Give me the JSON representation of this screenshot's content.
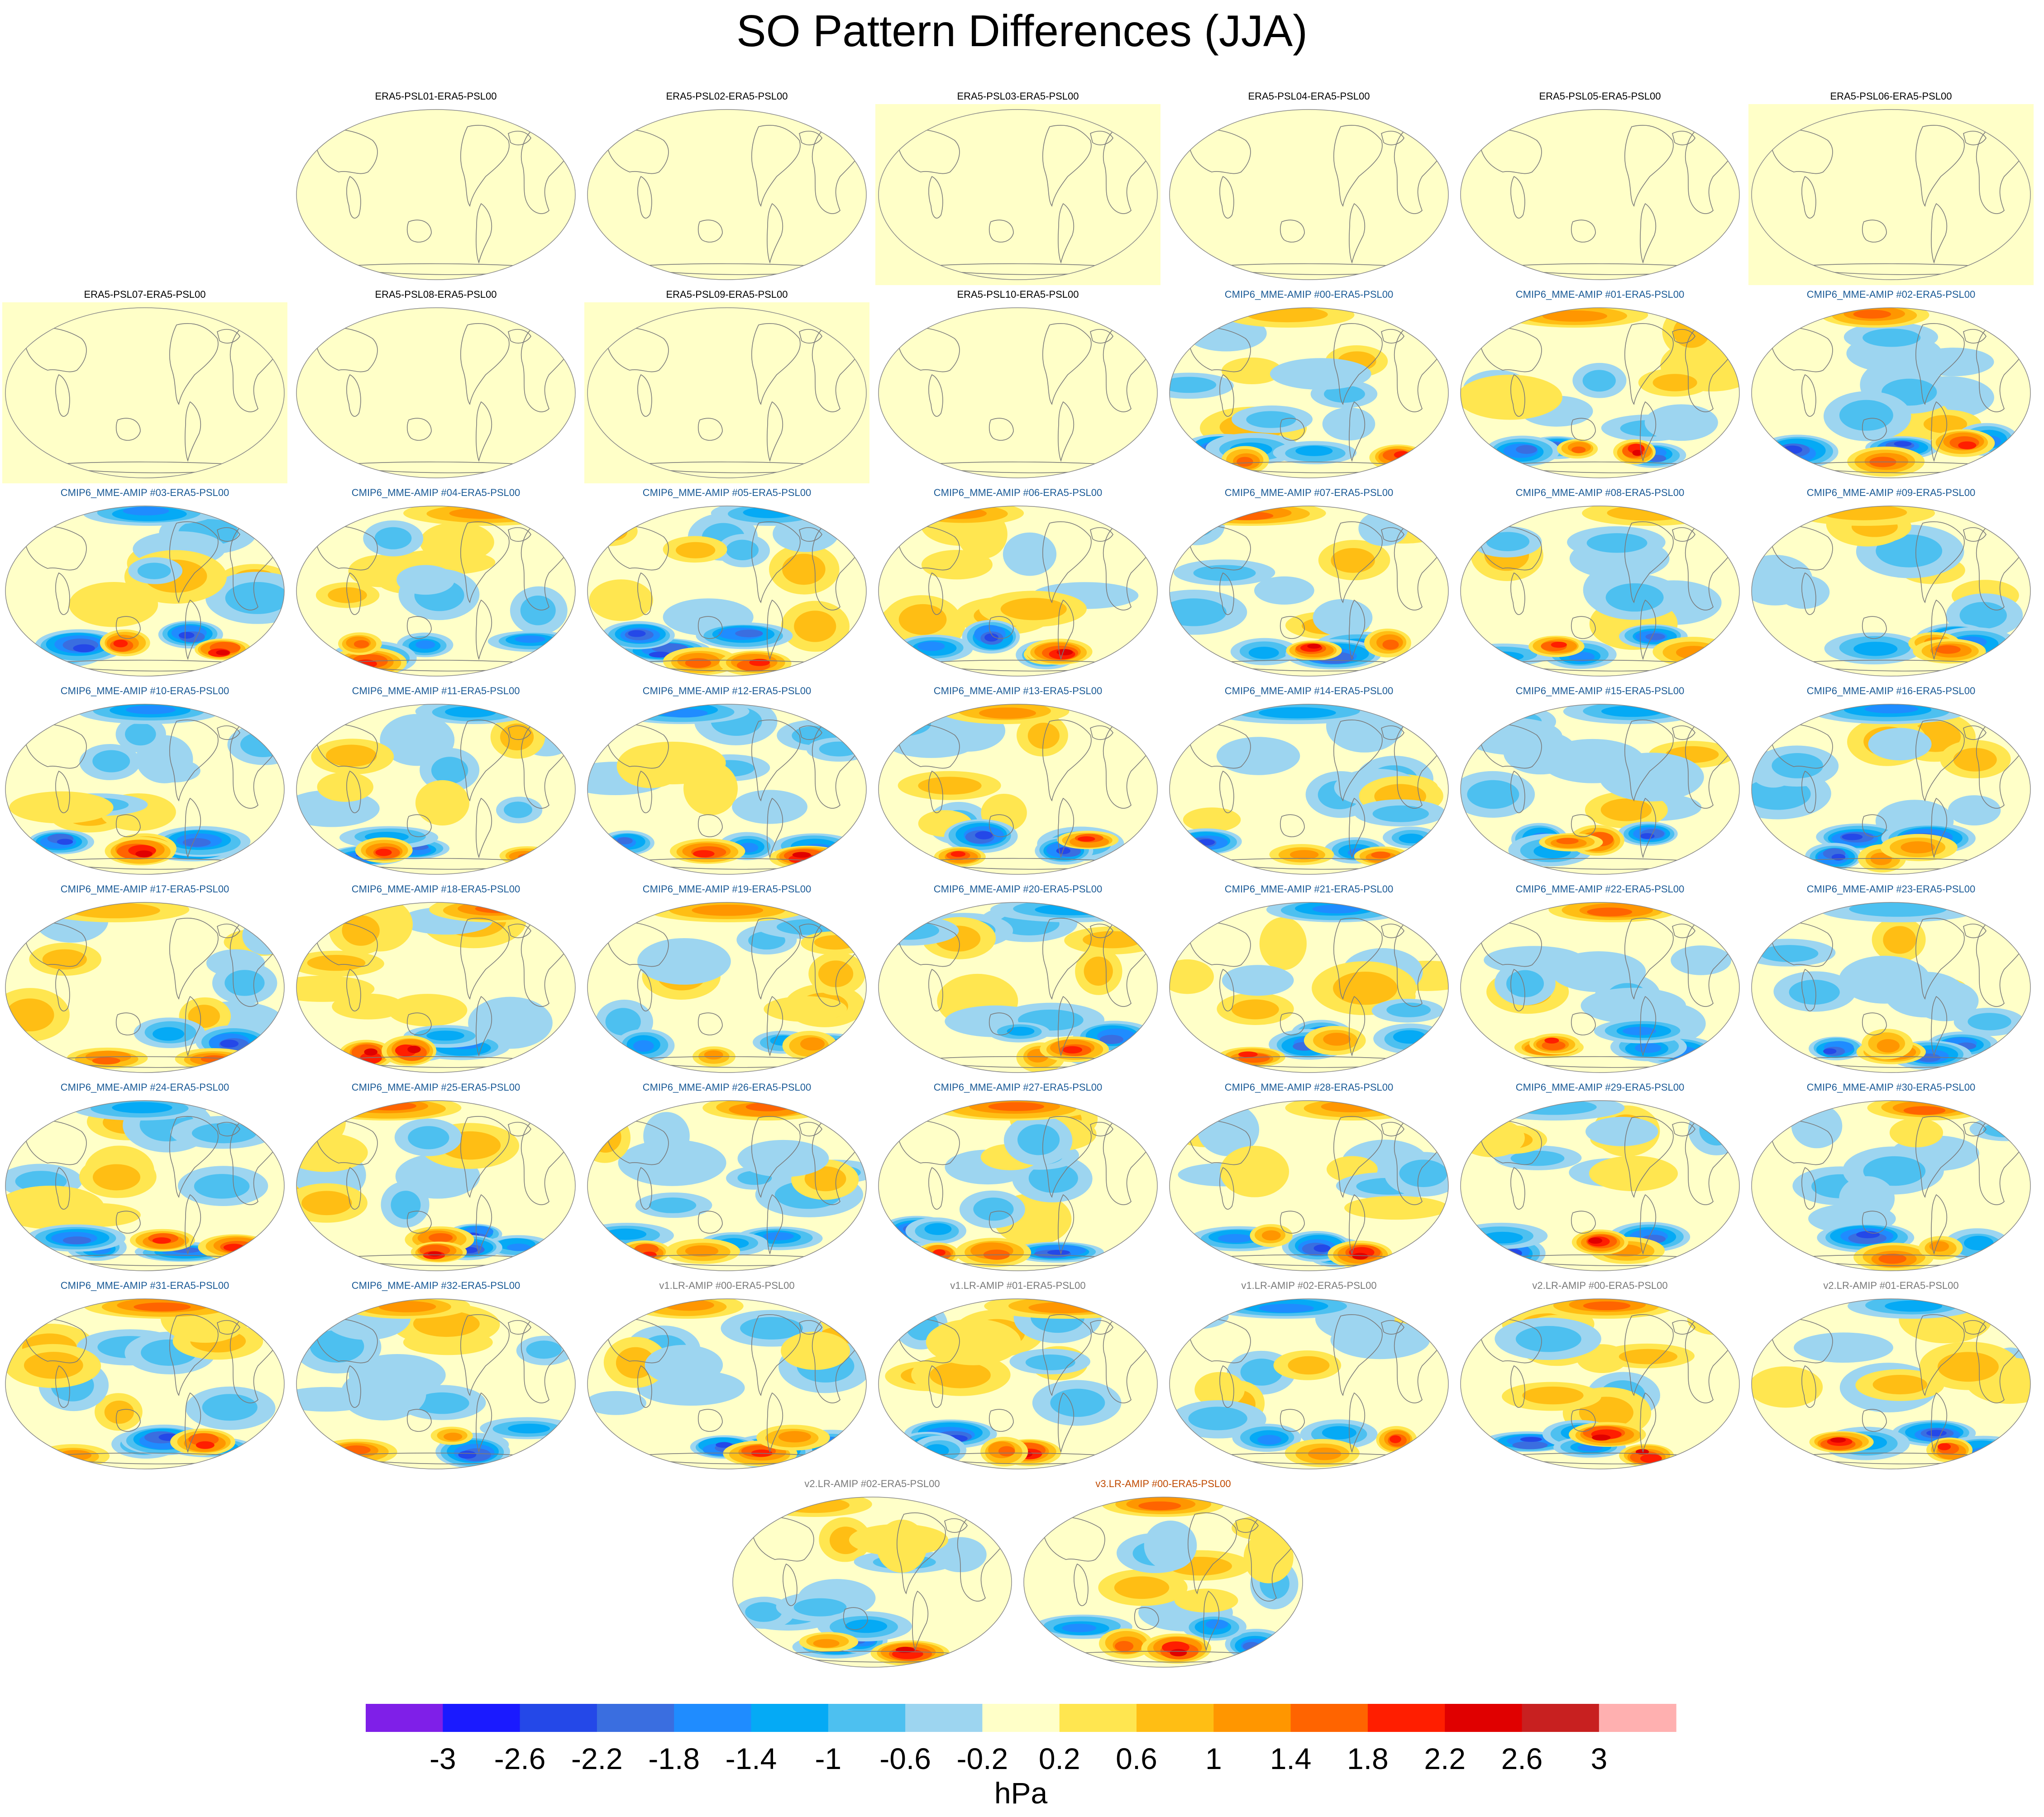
{
  "title": "SO Pattern Differences (JJA)",
  "colors": {
    "era5_title": "#000000",
    "cmip6_title": "#1a5a96",
    "v1_title": "#7a7a7a",
    "v2_title": "#7a7a7a",
    "v3_title": "#c04a00",
    "coast": "#7a7a7a",
    "neutral_fill": "#ffffc8"
  },
  "panels": [
    {
      "label": "ERA5-PSL01-ERA5-PSL00",
      "group": "era5"
    },
    {
      "label": "ERA5-PSL02-ERA5-PSL00",
      "group": "era5"
    },
    {
      "label": "ERA5-PSL03-ERA5-PSL00",
      "group": "era5",
      "framed": true
    },
    {
      "label": "ERA5-PSL04-ERA5-PSL00",
      "group": "era5"
    },
    {
      "label": "ERA5-PSL05-ERA5-PSL00",
      "group": "era5"
    },
    {
      "label": "ERA5-PSL06-ERA5-PSL00",
      "group": "era5",
      "framed": true
    },
    {
      "label": "ERA5-PSL07-ERA5-PSL00",
      "group": "era5",
      "framed": true
    },
    {
      "label": "ERA5-PSL08-ERA5-PSL00",
      "group": "era5"
    },
    {
      "label": "ERA5-PSL09-ERA5-PSL00",
      "group": "era5",
      "framed": true
    },
    {
      "label": "ERA5-PSL10-ERA5-PSL00",
      "group": "era5"
    },
    {
      "label": "CMIP6_MME-AMIP  #00-ERA5-PSL00",
      "group": "cmip6"
    },
    {
      "label": "CMIP6_MME-AMIP  #01-ERA5-PSL00",
      "group": "cmip6"
    },
    {
      "label": "CMIP6_MME-AMIP  #02-ERA5-PSL00",
      "group": "cmip6"
    },
    {
      "label": "CMIP6_MME-AMIP  #03-ERA5-PSL00",
      "group": "cmip6"
    },
    {
      "label": "CMIP6_MME-AMIP  #04-ERA5-PSL00",
      "group": "cmip6"
    },
    {
      "label": "CMIP6_MME-AMIP  #05-ERA5-PSL00",
      "group": "cmip6"
    },
    {
      "label": "CMIP6_MME-AMIP  #06-ERA5-PSL00",
      "group": "cmip6"
    },
    {
      "label": "CMIP6_MME-AMIP  #07-ERA5-PSL00",
      "group": "cmip6"
    },
    {
      "label": "CMIP6_MME-AMIP  #08-ERA5-PSL00",
      "group": "cmip6"
    },
    {
      "label": "CMIP6_MME-AMIP  #09-ERA5-PSL00",
      "group": "cmip6"
    },
    {
      "label": "CMIP6_MME-AMIP  #10-ERA5-PSL00",
      "group": "cmip6"
    },
    {
      "label": "CMIP6_MME-AMIP  #11-ERA5-PSL00",
      "group": "cmip6"
    },
    {
      "label": "CMIP6_MME-AMIP  #12-ERA5-PSL00",
      "group": "cmip6"
    },
    {
      "label": "CMIP6_MME-AMIP  #13-ERA5-PSL00",
      "group": "cmip6"
    },
    {
      "label": "CMIP6_MME-AMIP  #14-ERA5-PSL00",
      "group": "cmip6"
    },
    {
      "label": "CMIP6_MME-AMIP  #15-ERA5-PSL00",
      "group": "cmip6"
    },
    {
      "label": "CMIP6_MME-AMIP  #16-ERA5-PSL00",
      "group": "cmip6"
    },
    {
      "label": "CMIP6_MME-AMIP  #17-ERA5-PSL00",
      "group": "cmip6"
    },
    {
      "label": "CMIP6_MME-AMIP  #18-ERA5-PSL00",
      "group": "cmip6"
    },
    {
      "label": "CMIP6_MME-AMIP  #19-ERA5-PSL00",
      "group": "cmip6"
    },
    {
      "label": "CMIP6_MME-AMIP  #20-ERA5-PSL00",
      "group": "cmip6"
    },
    {
      "label": "CMIP6_MME-AMIP  #21-ERA5-PSL00",
      "group": "cmip6"
    },
    {
      "label": "CMIP6_MME-AMIP  #22-ERA5-PSL00",
      "group": "cmip6"
    },
    {
      "label": "CMIP6_MME-AMIP  #23-ERA5-PSL00",
      "group": "cmip6"
    },
    {
      "label": "CMIP6_MME-AMIP  #24-ERA5-PSL00",
      "group": "cmip6"
    },
    {
      "label": "CMIP6_MME-AMIP  #25-ERA5-PSL00",
      "group": "cmip6"
    },
    {
      "label": "CMIP6_MME-AMIP  #26-ERA5-PSL00",
      "group": "cmip6"
    },
    {
      "label": "CMIP6_MME-AMIP  #27-ERA5-PSL00",
      "group": "cmip6"
    },
    {
      "label": "CMIP6_MME-AMIP  #28-ERA5-PSL00",
      "group": "cmip6"
    },
    {
      "label": "CMIP6_MME-AMIP  #29-ERA5-PSL00",
      "group": "cmip6"
    },
    {
      "label": "CMIP6_MME-AMIP  #30-ERA5-PSL00",
      "group": "cmip6"
    },
    {
      "label": "CMIP6_MME-AMIP  #31-ERA5-PSL00",
      "group": "cmip6"
    },
    {
      "label": "CMIP6_MME-AMIP  #32-ERA5-PSL00",
      "group": "cmip6"
    },
    {
      "label": "v1.LR-AMIP  #00-ERA5-PSL00",
      "group": "v1"
    },
    {
      "label": "v1.LR-AMIP  #01-ERA5-PSL00",
      "group": "v1"
    },
    {
      "label": "v1.LR-AMIP  #02-ERA5-PSL00",
      "group": "v1"
    },
    {
      "label": "v2.LR-AMIP  #00-ERA5-PSL00",
      "group": "v2"
    },
    {
      "label": "v2.LR-AMIP  #01-ERA5-PSL00",
      "group": "v2"
    },
    {
      "label": "v2.LR-AMIP  #02-ERA5-PSL00",
      "group": "v2"
    },
    {
      "label": "v3.LR-AMIP  #00-ERA5-PSL00",
      "group": "v3"
    }
  ],
  "chart_data": {
    "type": "heatmap",
    "title": "SO Pattern Differences (JJA)",
    "projection": "global ellipse (Robinson-like), Pacific-centred",
    "field": "sea level pressure pattern difference vs ERA5-PSL00",
    "units_label": "hPa",
    "colorbar": {
      "levels": [
        "-3",
        "-2.6",
        "-2.2",
        "-1.8",
        "-1.4",
        "-1",
        "-0.6",
        "-0.2",
        "0.2",
        "0.6",
        "1",
        "1.4",
        "1.8",
        "2.2",
        "2.6",
        "3"
      ],
      "colors": [
        "#7f1fe8",
        "#1a1aff",
        "#2448e8",
        "#3a6ee0",
        "#1f8cff",
        "#05aaf5",
        "#4dc0f0",
        "#9dd5f0",
        "#ffffc8",
        "#ffe650",
        "#ffbe14",
        "#ff9600",
        "#ff6400",
        "#ff1e00",
        "#e00000",
        "#c82020",
        "#ffb0b0"
      ],
      "position": "bottom"
    }
  }
}
